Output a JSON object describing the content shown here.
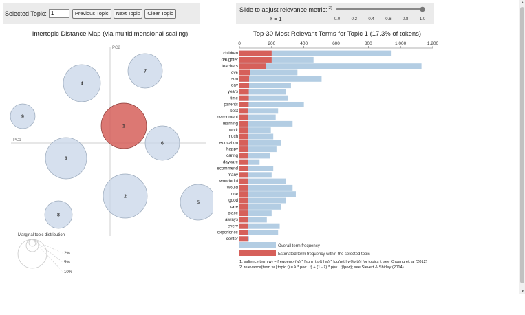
{
  "topic_controls": {
    "label": "Selected Topic:",
    "value": "1",
    "prev_label": "Previous Topic",
    "next_label": "Next Topic",
    "clear_label": "Clear Topic"
  },
  "lambda_controls": {
    "label": "Slide to adjust relevance metric:",
    "footnote_mark": "(2)",
    "value_label": "λ = 1",
    "value": 1,
    "ticks": [
      "0.0",
      "0.2",
      "0.4",
      "0.6",
      "0.8",
      "1.0"
    ]
  },
  "distance_map": {
    "title": "Intertopic Distance Map (via multidimensional scaling)",
    "pc1_label": "PC1",
    "pc2_label": "PC2",
    "selected_color": "#d6605a",
    "default_color": "#c8d6e8",
    "topics": [
      {
        "id": "1",
        "label": "1",
        "selected": true
      },
      {
        "id": "2",
        "label": "2",
        "selected": false
      },
      {
        "id": "3",
        "label": "3",
        "selected": false
      },
      {
        "id": "4",
        "label": "4",
        "selected": false
      },
      {
        "id": "5",
        "label": "5",
        "selected": false
      },
      {
        "id": "6",
        "label": "6",
        "selected": false
      },
      {
        "id": "7",
        "label": "7",
        "selected": false
      },
      {
        "id": "8",
        "label": "8",
        "selected": false
      },
      {
        "id": "9",
        "label": "9",
        "selected": false
      }
    ],
    "marginal": {
      "title": "Marginal topic distribution",
      "labels": [
        "2%",
        "5%",
        "10%"
      ]
    }
  },
  "chart_data": {
    "type": "bar",
    "title": "Top-30 Most Relevant Terms for Topic 1 (17.3% of tokens)",
    "xlim": [
      0,
      1200
    ],
    "x_ticks": [
      "0",
      "200",
      "400",
      "600",
      "800",
      "1,000",
      "1,200"
    ],
    "x_tick_values": [
      0,
      200,
      400,
      600,
      800,
      1000,
      1200
    ],
    "categories": [
      "children",
      "daughter",
      "teachers",
      "love",
      "son",
      "day",
      "years",
      "time",
      "parents",
      "best",
      "environment",
      "learning",
      "work",
      "much",
      "education",
      "happy",
      "caring",
      "daycare",
      "recommend",
      "many",
      "wonderful",
      "would",
      "one",
      "good",
      "care",
      "place",
      "always",
      "every",
      "experience",
      "center"
    ],
    "series": [
      {
        "name": "Overall term frequency",
        "color": "#b3cde3",
        "values": [
          940,
          460,
          1130,
          360,
          510,
          320,
          290,
          300,
          400,
          240,
          225,
          330,
          195,
          210,
          260,
          230,
          190,
          125,
          210,
          200,
          290,
          330,
          350,
          290,
          260,
          200,
          170,
          250,
          240,
          60
        ]
      },
      {
        "name": "Estimated term frequency within the selected topic",
        "color": "#d6605a",
        "values": [
          200,
          200,
          165,
          65,
          60,
          60,
          58,
          58,
          57,
          55,
          55,
          55,
          55,
          55,
          55,
          55,
          55,
          55,
          55,
          55,
          55,
          55,
          55,
          55,
          55,
          55,
          55,
          55,
          55,
          55
        ]
      }
    ],
    "notes": [
      "1. saliency(term w) = frequency(w) * [sum_t p(t | w) * log(p(t | w)/p(t))] for topics t; see Chuang et. al (2012)",
      "2. relevance(term w | topic t) = λ * p(w | t) + (1 - λ) * p(w | t)/p(w); see Sievert & Shirley (2014)"
    ]
  }
}
